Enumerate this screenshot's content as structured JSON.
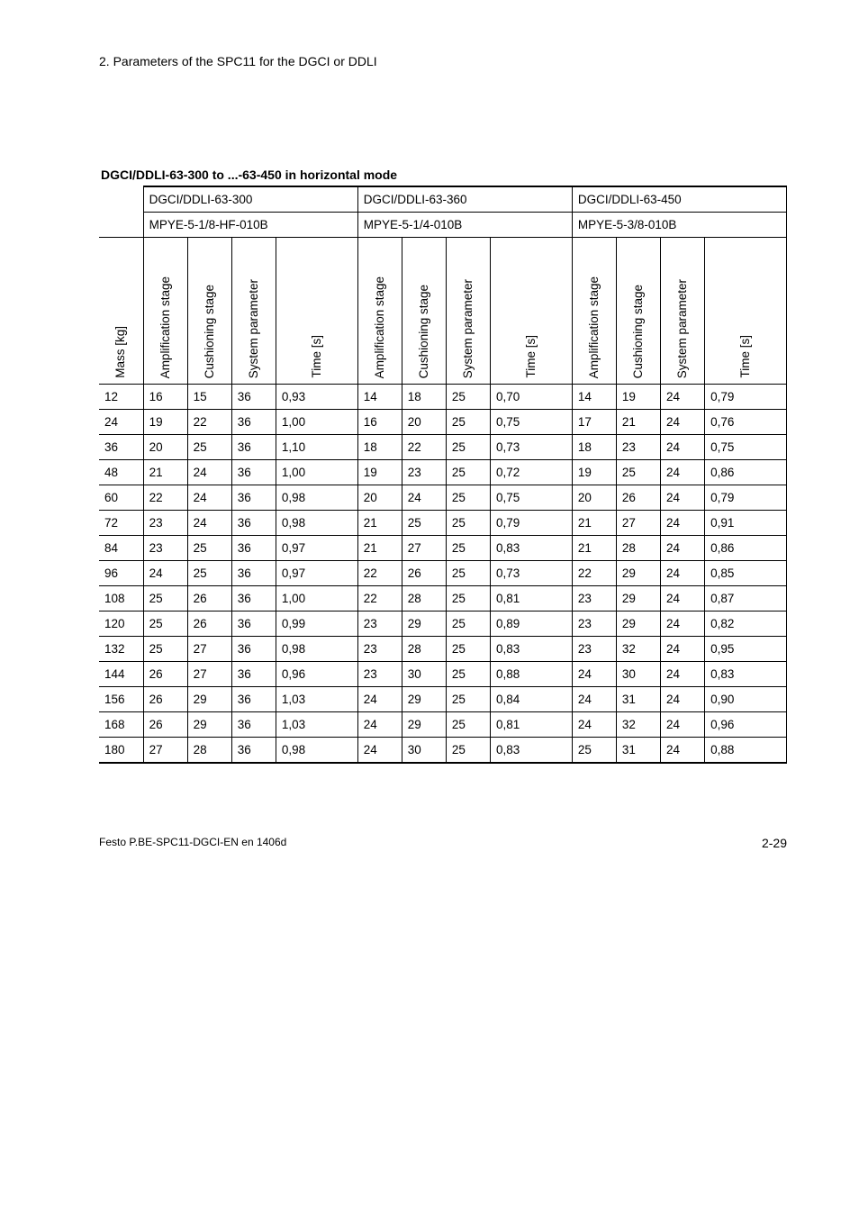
{
  "section_header": "2.   Parameters of the SPC11 for the DGCI or DDLI",
  "table_title": "DGCI/DDLI-63-300 to ...-63-450 in horizontal mode",
  "group_headers": [
    "DGCI/DDLI-63-300",
    "DGCI/DDLI-63-360",
    "DGCI/DDLI-63-450"
  ],
  "sub_headers": [
    "MPYE-5-1/8-HF-010B",
    "MPYE-5-1/4-010B",
    "MPYE-5-3/8-010B"
  ],
  "col_labels": {
    "mass": "Mass [kg]",
    "amp": "Amplification stage",
    "cush": "Cushioning stage",
    "sys": "System parameter",
    "time": "Time [s]"
  },
  "rows": [
    {
      "mass": "12",
      "a1": "16",
      "c1": "15",
      "s1": "36",
      "t1": "0,93",
      "a2": "14",
      "c2": "18",
      "s2": "25",
      "t2": "0,70",
      "a3": "14",
      "c3": "19",
      "s3": "24",
      "t3": "0,79"
    },
    {
      "mass": "24",
      "a1": "19",
      "c1": "22",
      "s1": "36",
      "t1": "1,00",
      "a2": "16",
      "c2": "20",
      "s2": "25",
      "t2": "0,75",
      "a3": "17",
      "c3": "21",
      "s3": "24",
      "t3": "0,76"
    },
    {
      "mass": "36",
      "a1": "20",
      "c1": "25",
      "s1": "36",
      "t1": "1,10",
      "a2": "18",
      "c2": "22",
      "s2": "25",
      "t2": "0,73",
      "a3": "18",
      "c3": "23",
      "s3": "24",
      "t3": "0,75"
    },
    {
      "mass": "48",
      "a1": "21",
      "c1": "24",
      "s1": "36",
      "t1": "1,00",
      "a2": "19",
      "c2": "23",
      "s2": "25",
      "t2": "0,72",
      "a3": "19",
      "c3": "25",
      "s3": "24",
      "t3": "0,86"
    },
    {
      "mass": "60",
      "a1": "22",
      "c1": "24",
      "s1": "36",
      "t1": "0,98",
      "a2": "20",
      "c2": "24",
      "s2": "25",
      "t2": "0,75",
      "a3": "20",
      "c3": "26",
      "s3": "24",
      "t3": "0,79"
    },
    {
      "mass": "72",
      "a1": "23",
      "c1": "24",
      "s1": "36",
      "t1": "0,98",
      "a2": "21",
      "c2": "25",
      "s2": "25",
      "t2": "0,79",
      "a3": "21",
      "c3": "27",
      "s3": "24",
      "t3": "0,91"
    },
    {
      "mass": "84",
      "a1": "23",
      "c1": "25",
      "s1": "36",
      "t1": "0,97",
      "a2": "21",
      "c2": "27",
      "s2": "25",
      "t2": "0,83",
      "a3": "21",
      "c3": "28",
      "s3": "24",
      "t3": "0,86"
    },
    {
      "mass": "96",
      "a1": "24",
      "c1": "25",
      "s1": "36",
      "t1": "0,97",
      "a2": "22",
      "c2": "26",
      "s2": "25",
      "t2": "0,73",
      "a3": "22",
      "c3": "29",
      "s3": "24",
      "t3": "0,85"
    },
    {
      "mass": "108",
      "a1": "25",
      "c1": "26",
      "s1": "36",
      "t1": "1,00",
      "a2": "22",
      "c2": "28",
      "s2": "25",
      "t2": "0,81",
      "a3": "23",
      "c3": "29",
      "s3": "24",
      "t3": "0,87"
    },
    {
      "mass": "120",
      "a1": "25",
      "c1": "26",
      "s1": "36",
      "t1": "0,99",
      "a2": "23",
      "c2": "29",
      "s2": "25",
      "t2": "0,89",
      "a3": "23",
      "c3": "29",
      "s3": "24",
      "t3": "0,82"
    },
    {
      "mass": "132",
      "a1": "25",
      "c1": "27",
      "s1": "36",
      "t1": "0,98",
      "a2": "23",
      "c2": "28",
      "s2": "25",
      "t2": "0,83",
      "a3": "23",
      "c3": "32",
      "s3": "24",
      "t3": "0,95"
    },
    {
      "mass": "144",
      "a1": "26",
      "c1": "27",
      "s1": "36",
      "t1": "0,96",
      "a2": "23",
      "c2": "30",
      "s2": "25",
      "t2": "0,88",
      "a3": "24",
      "c3": "30",
      "s3": "24",
      "t3": "0,83"
    },
    {
      "mass": "156",
      "a1": "26",
      "c1": "29",
      "s1": "36",
      "t1": "1,03",
      "a2": "24",
      "c2": "29",
      "s2": "25",
      "t2": "0,84",
      "a3": "24",
      "c3": "31",
      "s3": "24",
      "t3": "0,90"
    },
    {
      "mass": "168",
      "a1": "26",
      "c1": "29",
      "s1": "36",
      "t1": "1,03",
      "a2": "24",
      "c2": "29",
      "s2": "25",
      "t2": "0,81",
      "a3": "24",
      "c3": "32",
      "s3": "24",
      "t3": "0,96"
    },
    {
      "mass": "180",
      "a1": "27",
      "c1": "28",
      "s1": "36",
      "t1": "0,98",
      "a2": "24",
      "c2": "30",
      "s2": "25",
      "t2": "0,83",
      "a3": "25",
      "c3": "31",
      "s3": "24",
      "t3": "0,88"
    }
  ],
  "footer_left": "Festo P.BE-SPC11-DGCI-EN  en 1406d",
  "footer_right": "2-29"
}
